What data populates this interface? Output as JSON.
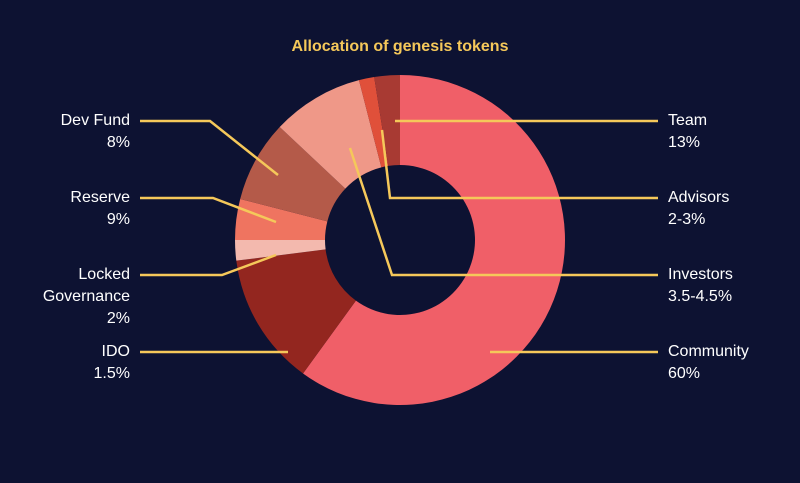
{
  "chart_data": {
    "type": "pie",
    "title": "Allocation of genesis tokens",
    "categories": [
      "Community",
      "Team",
      "Locked Governance",
      "Investors",
      "Dev Fund",
      "Reserve",
      "IDO",
      "Advisors"
    ],
    "values": [
      60,
      13,
      2,
      4,
      8,
      9,
      1.5,
      2.5
    ],
    "value_labels": [
      "60%",
      "13%",
      "2%",
      "3.5-4.5%",
      "8%",
      "9%",
      "1.5%",
      "2-3%"
    ],
    "colors": [
      "#f05f68",
      "#93261f",
      "#f3b9ae",
      "#ef7460",
      "#b45a49",
      "#ef9888",
      "#e0503a",
      "#a83a33"
    ]
  }
}
